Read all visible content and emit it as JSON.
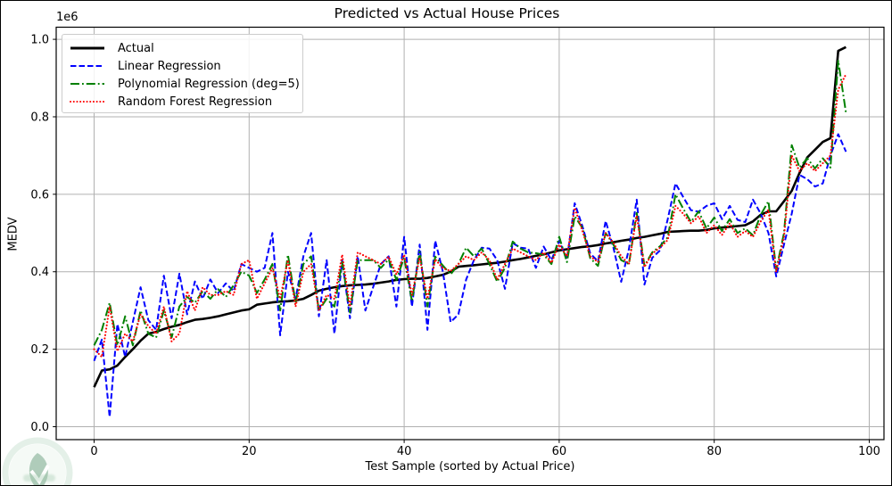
{
  "figure": {
    "background_color": "#ffffff",
    "grid_color": "#b0b0b0",
    "spine_color": "#000000",
    "legend_border_color": "#cccccc"
  },
  "chart_data": {
    "type": "line",
    "title": "Predicted vs Actual House Prices",
    "xlabel": "Test Sample (sorted by Actual Price)",
    "ylabel": "MEDV",
    "y_offset_multiplier": "1e6",
    "grid": true,
    "legend_position": "upper left",
    "xlim": [
      -4.9,
      101.9
    ],
    "ylim": [
      -0.03,
      1.03
    ],
    "x_ticks": [
      0,
      20,
      40,
      60,
      80,
      100
    ],
    "y_tick_labels": [
      "0.0",
      "0.2",
      "0.4",
      "0.6",
      "0.8",
      "1.0"
    ],
    "x_start": 0,
    "x_step": 1,
    "n_points": 98,
    "series": [
      {
        "name": "Actual",
        "color": "#000000",
        "line_style": "solid",
        "line_width": 2.6,
        "values": [
          0.102,
          0.145,
          0.148,
          0.158,
          0.18,
          0.2,
          0.222,
          0.24,
          0.245,
          0.252,
          0.258,
          0.263,
          0.27,
          0.276,
          0.278,
          0.281,
          0.285,
          0.29,
          0.295,
          0.3,
          0.303,
          0.315,
          0.318,
          0.321,
          0.323,
          0.324,
          0.326,
          0.33,
          0.34,
          0.351,
          0.356,
          0.36,
          0.363,
          0.365,
          0.366,
          0.367,
          0.369,
          0.372,
          0.375,
          0.379,
          0.381,
          0.382,
          0.382,
          0.384,
          0.388,
          0.392,
          0.4,
          0.413,
          0.415,
          0.417,
          0.419,
          0.421,
          0.423,
          0.426,
          0.43,
          0.433,
          0.437,
          0.441,
          0.445,
          0.45,
          0.455,
          0.458,
          0.461,
          0.464,
          0.466,
          0.469,
          0.473,
          0.476,
          0.48,
          0.483,
          0.487,
          0.49,
          0.494,
          0.498,
          0.503,
          0.504,
          0.505,
          0.506,
          0.506,
          0.508,
          0.512,
          0.514,
          0.516,
          0.518,
          0.52,
          0.53,
          0.547,
          0.556,
          0.556,
          0.582,
          0.609,
          0.655,
          0.695,
          0.715,
          0.735,
          0.745,
          0.97,
          0.98
        ]
      },
      {
        "name": "Linear Regression",
        "color": "#0000ff",
        "line_style": "dashed",
        "line_width": 2.0,
        "values": [
          0.17,
          0.225,
          0.025,
          0.265,
          0.18,
          0.27,
          0.36,
          0.275,
          0.25,
          0.39,
          0.28,
          0.395,
          0.29,
          0.375,
          0.33,
          0.38,
          0.345,
          0.37,
          0.35,
          0.42,
          0.41,
          0.4,
          0.41,
          0.5,
          0.236,
          0.4,
          0.33,
          0.44,
          0.5,
          0.285,
          0.43,
          0.24,
          0.43,
          0.28,
          0.44,
          0.3,
          0.36,
          0.42,
          0.44,
          0.31,
          0.49,
          0.31,
          0.47,
          0.25,
          0.48,
          0.4,
          0.27,
          0.29,
          0.38,
          0.43,
          0.462,
          0.46,
          0.43,
          0.356,
          0.474,
          0.462,
          0.46,
          0.41,
          0.465,
          0.43,
          0.48,
          0.432,
          0.577,
          0.517,
          0.447,
          0.427,
          0.531,
          0.462,
          0.374,
          0.459,
          0.586,
          0.367,
          0.436,
          0.455,
          0.536,
          0.628,
          0.593,
          0.559,
          0.555,
          0.57,
          0.577,
          0.536,
          0.57,
          0.534,
          0.528,
          0.586,
          0.55,
          0.5,
          0.388,
          0.47,
          0.55,
          0.65,
          0.639,
          0.62,
          0.628,
          0.7,
          0.755,
          0.71
        ]
      },
      {
        "name": "Polynomial Regression (deg=5)",
        "color": "#008000",
        "line_style": "dashdot",
        "line_width": 2.0,
        "values": [
          0.21,
          0.25,
          0.32,
          0.21,
          0.285,
          0.21,
          0.3,
          0.24,
          0.23,
          0.3,
          0.23,
          0.31,
          0.335,
          0.32,
          0.35,
          0.33,
          0.355,
          0.335,
          0.365,
          0.4,
          0.39,
          0.345,
          0.38,
          0.42,
          0.3,
          0.444,
          0.32,
          0.42,
          0.44,
          0.3,
          0.33,
          0.31,
          0.425,
          0.295,
          0.43,
          0.43,
          0.43,
          0.41,
          0.432,
          0.379,
          0.437,
          0.324,
          0.451,
          0.31,
          0.439,
          0.416,
          0.393,
          0.42,
          0.462,
          0.44,
          0.46,
          0.42,
          0.374,
          0.41,
          0.478,
          0.46,
          0.45,
          0.448,
          0.444,
          0.42,
          0.49,
          0.425,
          0.543,
          0.513,
          0.435,
          0.415,
          0.5,
          0.47,
          0.43,
          0.42,
          0.552,
          0.415,
          0.45,
          0.466,
          0.489,
          0.6,
          0.563,
          0.529,
          0.556,
          0.512,
          0.54,
          0.505,
          0.536,
          0.5,
          0.512,
          0.494,
          0.547,
          0.582,
          0.405,
          0.5,
          0.727,
          0.669,
          0.693,
          0.667,
          0.693,
          0.669,
          0.945,
          0.81
        ]
      },
      {
        "name": "Random Forest Regression",
        "color": "#ff0000",
        "line_style": "dotted",
        "line_width": 2.1,
        "values": [
          0.2,
          0.18,
          0.31,
          0.195,
          0.24,
          0.22,
          0.29,
          0.26,
          0.24,
          0.31,
          0.22,
          0.24,
          0.35,
          0.3,
          0.36,
          0.34,
          0.34,
          0.35,
          0.34,
          0.42,
          0.43,
          0.33,
          0.37,
          0.41,
          0.33,
          0.43,
          0.31,
          0.4,
          0.42,
          0.3,
          0.34,
          0.33,
          0.444,
          0.31,
          0.45,
          0.44,
          0.43,
          0.42,
          0.439,
          0.393,
          0.444,
          0.34,
          0.437,
          0.33,
          0.432,
          0.409,
          0.402,
          0.42,
          0.44,
          0.43,
          0.45,
          0.43,
          0.38,
          0.42,
          0.46,
          0.45,
          0.44,
          0.43,
          0.45,
          0.423,
          0.47,
          0.44,
          0.565,
          0.505,
          0.44,
          0.425,
          0.5,
          0.475,
          0.44,
          0.42,
          0.545,
          0.412,
          0.447,
          0.462,
          0.482,
          0.57,
          0.55,
          0.525,
          0.543,
          0.5,
          0.52,
          0.495,
          0.525,
          0.49,
          0.505,
          0.49,
          0.53,
          0.56,
          0.4,
          0.49,
          0.7,
          0.66,
          0.68,
          0.66,
          0.68,
          0.7,
          0.87,
          0.91
        ]
      }
    ]
  },
  "watermark": {
    "shape": "leaf-logo",
    "ring_color": "#cfe5d6",
    "fill_color": "#eef6f0",
    "leaf_color": "#6fa383"
  }
}
